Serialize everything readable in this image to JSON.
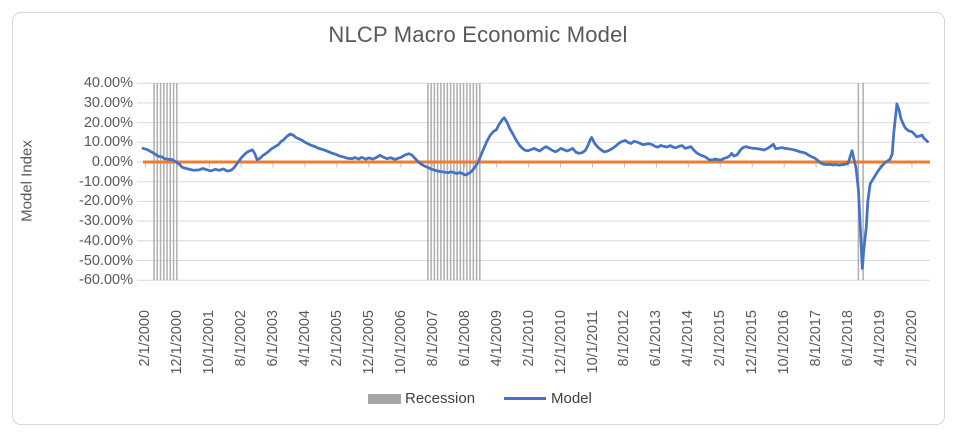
{
  "title": "NLCP Macro Economic Model",
  "y_axis": {
    "title": "Model Index",
    "tick_labels": [
      "40.00%",
      "30.00%",
      "20.00%",
      "10.00%",
      "0.00%",
      "-10.00%",
      "-20.00%",
      "-30.00%",
      "-40.00%",
      "-50.00%",
      "-60.00%"
    ]
  },
  "x_axis": {
    "tick_labels": [
      "2/1/2000",
      "12/1/2000",
      "10/1/2001",
      "8/1/2002",
      "6/1/2003",
      "4/1/2004",
      "2/1/2005",
      "12/1/2005",
      "10/1/2006",
      "8/1/2007",
      "6/1/2008",
      "4/1/2009",
      "2/1/2010",
      "12/1/2010",
      "10/1/2011",
      "8/1/2012",
      "6/1/2013",
      "4/1/2014",
      "2/1/2015",
      "12/1/2015",
      "10/1/2016",
      "8/1/2017",
      "6/1/2018",
      "4/1/2019",
      "2/1/2020"
    ]
  },
  "legend": {
    "items": [
      {
        "label": "Recession",
        "swatch": "bar",
        "color": "#A6A6A6"
      },
      {
        "label": "Model",
        "swatch": "line",
        "color": "#4472C4"
      }
    ]
  },
  "colors": {
    "model_line": "#4472C4",
    "zero_baseline": "#ED7D31",
    "recession_band": "#A6A6A6",
    "gridline": "#D9D9D9",
    "tick": "#C0C0C0",
    "text": "#595959",
    "border": "#D7D7D7"
  },
  "chart_data": {
    "type": "line",
    "title": "NLCP Macro Economic Model",
    "ylabel": "Model Index",
    "ylim_pct": [
      -60,
      40
    ],
    "ytick_pct": [
      40,
      30,
      20,
      10,
      0,
      -10,
      -20,
      -30,
      -40,
      -50,
      -60
    ],
    "ytick_labels": [
      "40.00%",
      "30.00%",
      "20.00%",
      "10.00%",
      "0.00%",
      "-10.00%",
      "-20.00%",
      "-30.00%",
      "-40.00%",
      "-50.00%",
      "-60.00%"
    ],
    "xtick_labels": [
      "2/1/2000",
      "12/1/2000",
      "10/1/2001",
      "8/1/2002",
      "6/1/2003",
      "4/1/2004",
      "2/1/2005",
      "12/1/2005",
      "10/1/2006",
      "8/1/2007",
      "6/1/2008",
      "4/1/2009",
      "2/1/2010",
      "12/1/2010",
      "10/1/2011",
      "8/1/2012",
      "6/1/2013",
      "4/1/2014",
      "2/1/2015",
      "12/1/2015",
      "10/1/2016",
      "8/1/2017",
      "6/1/2018",
      "4/1/2019",
      "2/1/2020"
    ],
    "x_note": "t = fractional position along the x axis; monthly series, t=0 at 2/1/2000, xtick labels every 10 months",
    "baseline": {
      "value_pct": 0,
      "color": "#ED7D31"
    },
    "grid": true,
    "legend_position": "bottom",
    "series": [
      {
        "name": "Model",
        "kind": "line",
        "color": "#4472C4",
        "points_t_pct": [
          [
            0.0,
            6.9
          ],
          [
            0.005,
            6.4
          ],
          [
            0.009,
            5.5
          ],
          [
            0.015,
            4.1
          ],
          [
            0.019,
            3.0
          ],
          [
            0.024,
            2.6
          ],
          [
            0.028,
            1.6
          ],
          [
            0.033,
            1.3
          ],
          [
            0.037,
            1.2
          ],
          [
            0.041,
            0.2
          ],
          [
            0.046,
            -1.0
          ],
          [
            0.05,
            -2.7
          ],
          [
            0.055,
            -3.3
          ],
          [
            0.06,
            -3.8
          ],
          [
            0.065,
            -4.2
          ],
          [
            0.071,
            -4.0
          ],
          [
            0.076,
            -3.3
          ],
          [
            0.081,
            -3.9
          ],
          [
            0.086,
            -4.5
          ],
          [
            0.092,
            -3.7
          ],
          [
            0.097,
            -4.2
          ],
          [
            0.102,
            -3.5
          ],
          [
            0.107,
            -4.6
          ],
          [
            0.112,
            -4.2
          ],
          [
            0.116,
            -2.8
          ],
          [
            0.121,
            0.0
          ],
          [
            0.125,
            2.2
          ],
          [
            0.13,
            4.2
          ],
          [
            0.133,
            5.2
          ],
          [
            0.139,
            6.2
          ],
          [
            0.142,
            4.2
          ],
          [
            0.145,
            1.2
          ],
          [
            0.149,
            2.0
          ],
          [
            0.152,
            3.2
          ],
          [
            0.158,
            4.8
          ],
          [
            0.163,
            6.6
          ],
          [
            0.168,
            7.8
          ],
          [
            0.172,
            8.8
          ],
          [
            0.175,
            10.2
          ],
          [
            0.179,
            11.4
          ],
          [
            0.183,
            13.0
          ],
          [
            0.187,
            14.2
          ],
          [
            0.191,
            13.6
          ],
          [
            0.194,
            12.5
          ],
          [
            0.198,
            11.8
          ],
          [
            0.202,
            11.0
          ],
          [
            0.206,
            10.0
          ],
          [
            0.21,
            9.2
          ],
          [
            0.213,
            8.6
          ],
          [
            0.219,
            7.7
          ],
          [
            0.222,
            7.1
          ],
          [
            0.227,
            6.5
          ],
          [
            0.231,
            6.0
          ],
          [
            0.236,
            5.2
          ],
          [
            0.24,
            4.5
          ],
          [
            0.245,
            3.9
          ],
          [
            0.25,
            3.0
          ],
          [
            0.255,
            2.5
          ],
          [
            0.26,
            1.9
          ],
          [
            0.266,
            1.6
          ],
          [
            0.269,
            2.3
          ],
          [
            0.274,
            1.5
          ],
          [
            0.278,
            2.4
          ],
          [
            0.283,
            1.4
          ],
          [
            0.287,
            2.1
          ],
          [
            0.292,
            1.5
          ],
          [
            0.296,
            2.2
          ],
          [
            0.301,
            3.4
          ],
          [
            0.306,
            2.4
          ],
          [
            0.31,
            1.7
          ],
          [
            0.315,
            2.2
          ],
          [
            0.32,
            1.3
          ],
          [
            0.324,
            1.9
          ],
          [
            0.328,
            2.4
          ],
          [
            0.333,
            3.6
          ],
          [
            0.338,
            4.2
          ],
          [
            0.342,
            3.4
          ],
          [
            0.346,
            1.7
          ],
          [
            0.349,
            0.4
          ],
          [
            0.353,
            -1.0
          ],
          [
            0.357,
            -1.9
          ],
          [
            0.362,
            -2.8
          ],
          [
            0.367,
            -3.7
          ],
          [
            0.372,
            -4.3
          ],
          [
            0.377,
            -4.8
          ],
          [
            0.382,
            -5.1
          ],
          [
            0.388,
            -5.5
          ],
          [
            0.391,
            -5.0
          ],
          [
            0.395,
            -5.4
          ],
          [
            0.399,
            -5.9
          ],
          [
            0.403,
            -5.3
          ],
          [
            0.407,
            -6.2
          ],
          [
            0.41,
            -6.6
          ],
          [
            0.414,
            -5.8
          ],
          [
            0.418,
            -4.5
          ],
          [
            0.422,
            -2.5
          ],
          [
            0.426,
            0.0
          ],
          [
            0.429,
            3.0
          ],
          [
            0.433,
            6.9
          ],
          [
            0.437,
            10.5
          ],
          [
            0.441,
            13.5
          ],
          [
            0.445,
            15.4
          ],
          [
            0.449,
            16.4
          ],
          [
            0.452,
            18.8
          ],
          [
            0.456,
            21.2
          ],
          [
            0.459,
            22.5
          ],
          [
            0.463,
            19.8
          ],
          [
            0.466,
            17.0
          ],
          [
            0.47,
            14.2
          ],
          [
            0.474,
            11.2
          ],
          [
            0.478,
            8.7
          ],
          [
            0.482,
            7.0
          ],
          [
            0.485,
            6.0
          ],
          [
            0.489,
            5.7
          ],
          [
            0.493,
            6.3
          ],
          [
            0.497,
            6.9
          ],
          [
            0.501,
            6.1
          ],
          [
            0.504,
            5.6
          ],
          [
            0.508,
            6.8
          ],
          [
            0.512,
            7.8
          ],
          [
            0.516,
            6.9
          ],
          [
            0.52,
            5.9
          ],
          [
            0.524,
            5.2
          ],
          [
            0.527,
            5.8
          ],
          [
            0.531,
            6.9
          ],
          [
            0.535,
            6.2
          ],
          [
            0.539,
            5.6
          ],
          [
            0.543,
            6.3
          ],
          [
            0.546,
            6.9
          ],
          [
            0.55,
            5.0
          ],
          [
            0.554,
            4.4
          ],
          [
            0.558,
            4.7
          ],
          [
            0.562,
            5.9
          ],
          [
            0.565,
            8.1
          ],
          [
            0.568,
            11.0
          ],
          [
            0.57,
            12.5
          ],
          [
            0.574,
            9.4
          ],
          [
            0.578,
            7.5
          ],
          [
            0.582,
            6.2
          ],
          [
            0.586,
            5.2
          ],
          [
            0.59,
            5.5
          ],
          [
            0.593,
            6.1
          ],
          [
            0.597,
            7.0
          ],
          [
            0.601,
            8.2
          ],
          [
            0.605,
            9.6
          ],
          [
            0.609,
            10.5
          ],
          [
            0.613,
            10.9
          ],
          [
            0.616,
            10.0
          ],
          [
            0.62,
            9.4
          ],
          [
            0.624,
            10.5
          ],
          [
            0.628,
            10.1
          ],
          [
            0.632,
            9.4
          ],
          [
            0.635,
            8.8
          ],
          [
            0.639,
            9.1
          ],
          [
            0.643,
            9.3
          ],
          [
            0.647,
            8.8
          ],
          [
            0.651,
            7.9
          ],
          [
            0.654,
            7.5
          ],
          [
            0.658,
            8.4
          ],
          [
            0.662,
            7.9
          ],
          [
            0.666,
            7.6
          ],
          [
            0.67,
            8.3
          ],
          [
            0.673,
            7.6
          ],
          [
            0.677,
            7.2
          ],
          [
            0.681,
            8.0
          ],
          [
            0.685,
            8.3
          ],
          [
            0.689,
            6.9
          ],
          [
            0.693,
            7.4
          ],
          [
            0.696,
            7.8
          ],
          [
            0.7,
            6.0
          ],
          [
            0.704,
            4.5
          ],
          [
            0.708,
            3.6
          ],
          [
            0.712,
            3.0
          ],
          [
            0.715,
            2.5
          ],
          [
            0.719,
            1.2
          ],
          [
            0.723,
            1.0
          ],
          [
            0.727,
            1.5
          ],
          [
            0.731,
            1.1
          ],
          [
            0.734,
            1.0
          ],
          [
            0.738,
            1.8
          ],
          [
            0.742,
            2.3
          ],
          [
            0.746,
            3.3
          ],
          [
            0.748,
            4.4
          ],
          [
            0.751,
            3.0
          ],
          [
            0.755,
            3.7
          ],
          [
            0.759,
            6.0
          ],
          [
            0.762,
            7.2
          ],
          [
            0.766,
            7.8
          ],
          [
            0.77,
            7.3
          ],
          [
            0.774,
            7.0
          ],
          [
            0.778,
            6.9
          ],
          [
            0.781,
            6.7
          ],
          [
            0.785,
            6.5
          ],
          [
            0.789,
            6.1
          ],
          [
            0.793,
            6.8
          ],
          [
            0.797,
            7.8
          ],
          [
            0.801,
            9.0
          ],
          [
            0.804,
            6.7
          ],
          [
            0.808,
            7.0
          ],
          [
            0.812,
            7.3
          ],
          [
            0.816,
            6.9
          ],
          [
            0.82,
            6.7
          ],
          [
            0.823,
            6.5
          ],
          [
            0.827,
            6.2
          ],
          [
            0.831,
            5.7
          ],
          [
            0.835,
            5.2
          ],
          [
            0.839,
            4.8
          ],
          [
            0.843,
            4.2
          ],
          [
            0.846,
            3.4
          ],
          [
            0.85,
            2.6
          ],
          [
            0.854,
            1.9
          ],
          [
            0.858,
            0.6
          ],
          [
            0.861,
            -0.5
          ],
          [
            0.865,
            -1.1
          ],
          [
            0.869,
            -1.3
          ],
          [
            0.873,
            -1.2
          ],
          [
            0.877,
            -1.5
          ],
          [
            0.881,
            -1.3
          ],
          [
            0.884,
            -1.6
          ],
          [
            0.888,
            -1.4
          ],
          [
            0.892,
            -1.2
          ],
          [
            0.896,
            -0.6
          ],
          [
            0.898,
            2.0
          ],
          [
            0.901,
            5.8
          ],
          [
            0.903,
            2.0
          ],
          [
            0.906,
            -3.0
          ],
          [
            0.909,
            -14.0
          ],
          [
            0.911,
            -30.0
          ],
          [
            0.914,
            -54.0
          ],
          [
            0.916,
            -44.0
          ],
          [
            0.919,
            -33.0
          ],
          [
            0.921,
            -20.0
          ],
          [
            0.924,
            -11.0
          ],
          [
            0.928,
            -8.5
          ],
          [
            0.931,
            -6.5
          ],
          [
            0.935,
            -4.0
          ],
          [
            0.939,
            -2.0
          ],
          [
            0.943,
            -0.3
          ],
          [
            0.947,
            0.8
          ],
          [
            0.949,
            1.3
          ],
          [
            0.952,
            4.0
          ],
          [
            0.954,
            15.0
          ],
          [
            0.957,
            26.0
          ],
          [
            0.958,
            29.5
          ],
          [
            0.961,
            26.0
          ],
          [
            0.963,
            22.0
          ],
          [
            0.967,
            18.5
          ],
          [
            0.969,
            17.1
          ],
          [
            0.973,
            15.8
          ],
          [
            0.977,
            15.4
          ],
          [
            0.981,
            13.8
          ],
          [
            0.983,
            12.8
          ],
          [
            0.987,
            13.2
          ],
          [
            0.99,
            13.7
          ],
          [
            0.992,
            12.2
          ],
          [
            0.995,
            11.0
          ],
          [
            0.997,
            10.3
          ]
        ]
      },
      {
        "name": "Recession",
        "kind": "bar-bands",
        "color": "#A6A6A6",
        "bands_t": [
          {
            "start": 0.014,
            "end": 0.043,
            "bars": 8
          },
          {
            "start": 0.362,
            "end": 0.428,
            "bars": 17
          },
          {
            "start": 0.909,
            "end": 0.915,
            "bars": 2
          }
        ]
      }
    ]
  }
}
